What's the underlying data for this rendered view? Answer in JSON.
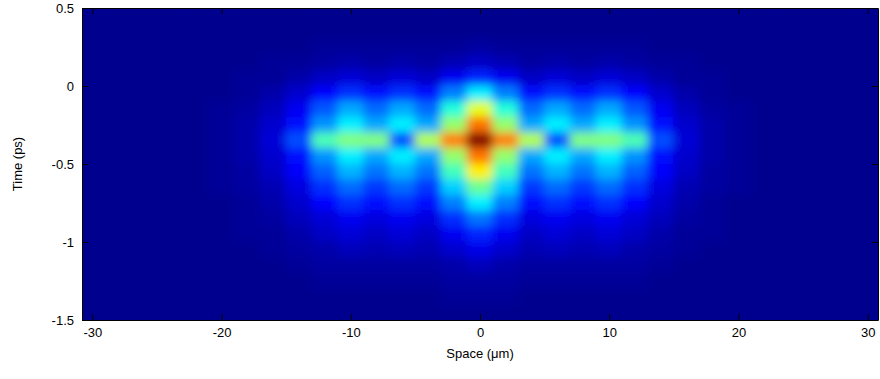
{
  "chart_data": {
    "type": "heatmap",
    "xlabel": "Space (μm)",
    "ylabel": "Time (ps)",
    "x": [
      -30,
      -28,
      -26,
      -24,
      -22,
      -20,
      -18,
      -16,
      -14,
      -12,
      -10,
      -8,
      -6,
      -4,
      -2,
      0,
      2,
      4,
      6,
      8,
      10,
      12,
      14,
      16,
      18,
      20,
      22,
      24,
      26,
      28,
      30
    ],
    "y": [
      0.45,
      0.35,
      0.25,
      0.15,
      0.05,
      -0.05,
      -0.15,
      -0.25,
      -0.35,
      -0.45,
      -0.55,
      -0.65,
      -0.75,
      -0.85,
      -0.95,
      -1.05,
      -1.15,
      -1.25,
      -1.35,
      -1.45
    ],
    "values": [
      [
        0,
        0,
        0,
        0,
        0,
        0,
        0,
        0,
        0,
        0,
        0,
        0,
        0,
        0,
        0,
        0,
        0,
        0,
        0,
        0,
        0,
        0,
        0,
        0,
        0,
        0,
        0,
        0,
        0,
        0,
        0
      ],
      [
        0,
        0,
        0,
        0,
        0,
        0,
        0,
        0,
        0,
        0,
        0,
        0,
        0,
        0,
        0,
        0,
        0,
        0,
        0,
        0,
        0,
        0,
        0,
        0,
        0,
        0,
        0,
        0,
        0,
        0,
        0
      ],
      [
        0,
        0,
        0,
        0,
        0,
        0,
        0,
        0,
        0,
        0.01,
        0.01,
        0.01,
        0.01,
        0.01,
        0.01,
        0.02,
        0.01,
        0.01,
        0.01,
        0.01,
        0.01,
        0.01,
        0,
        0,
        0,
        0,
        0,
        0,
        0,
        0,
        0
      ],
      [
        0,
        0,
        0,
        0,
        0,
        0,
        0,
        0.01,
        0.01,
        0.02,
        0.03,
        0.02,
        0.03,
        0.02,
        0.04,
        0.06,
        0.04,
        0.02,
        0.03,
        0.02,
        0.03,
        0.02,
        0.01,
        0.01,
        0,
        0,
        0,
        0,
        0,
        0,
        0
      ],
      [
        0,
        0,
        0,
        0,
        0,
        0,
        0.01,
        0.01,
        0.03,
        0.06,
        0.08,
        0.06,
        0.08,
        0.06,
        0.11,
        0.16,
        0.11,
        0.06,
        0.08,
        0.06,
        0.08,
        0.06,
        0.03,
        0.01,
        0.01,
        0,
        0,
        0,
        0,
        0,
        0
      ],
      [
        0,
        0,
        0,
        0,
        0,
        0,
        0.01,
        0.03,
        0.07,
        0.13,
        0.17,
        0.14,
        0.17,
        0.14,
        0.25,
        0.36,
        0.25,
        0.14,
        0.17,
        0.14,
        0.17,
        0.13,
        0.07,
        0.03,
        0.01,
        0,
        0,
        0,
        0,
        0,
        0
      ],
      [
        0,
        0,
        0,
        0,
        0,
        0.01,
        0.02,
        0.05,
        0.11,
        0.21,
        0.29,
        0.23,
        0.29,
        0.23,
        0.41,
        0.6,
        0.41,
        0.23,
        0.29,
        0.23,
        0.29,
        0.21,
        0.11,
        0.05,
        0.02,
        0.01,
        0,
        0,
        0,
        0,
        0
      ],
      [
        0,
        0,
        0,
        0,
        0,
        0.01,
        0.03,
        0.07,
        0.14,
        0.27,
        0.36,
        0.29,
        0.36,
        0.29,
        0.52,
        0.76,
        0.52,
        0.29,
        0.36,
        0.29,
        0.36,
        0.27,
        0.14,
        0.07,
        0.03,
        0.01,
        0,
        0,
        0,
        0,
        0
      ],
      [
        0,
        0,
        0,
        0,
        0,
        0.01,
        0.03,
        0.08,
        0.2,
        0.45,
        0.5,
        0.5,
        0.2,
        0.55,
        0.75,
        1,
        0.75,
        0.55,
        0.2,
        0.5,
        0.5,
        0.45,
        0.2,
        0.08,
        0.03,
        0.01,
        0,
        0,
        0,
        0,
        0
      ],
      [
        0,
        0,
        0,
        0,
        0,
        0.01,
        0.03,
        0.07,
        0.14,
        0.27,
        0.36,
        0.29,
        0.36,
        0.29,
        0.52,
        0.76,
        0.52,
        0.29,
        0.36,
        0.29,
        0.36,
        0.27,
        0.14,
        0.07,
        0.03,
        0.01,
        0,
        0,
        0,
        0,
        0
      ],
      [
        0,
        0,
        0,
        0,
        0,
        0.01,
        0.02,
        0.06,
        0.12,
        0.22,
        0.3,
        0.24,
        0.3,
        0.24,
        0.44,
        0.64,
        0.44,
        0.24,
        0.3,
        0.24,
        0.3,
        0.22,
        0.12,
        0.06,
        0.02,
        0.01,
        0,
        0,
        0,
        0,
        0
      ],
      [
        0,
        0,
        0,
        0,
        0,
        0.01,
        0.02,
        0.04,
        0.09,
        0.17,
        0.23,
        0.18,
        0.23,
        0.18,
        0.33,
        0.48,
        0.33,
        0.18,
        0.23,
        0.18,
        0.23,
        0.17,
        0.09,
        0.04,
        0.02,
        0.01,
        0,
        0,
        0,
        0,
        0
      ],
      [
        0,
        0,
        0,
        0,
        0,
        0,
        0.01,
        0.03,
        0.07,
        0.13,
        0.17,
        0.14,
        0.17,
        0.14,
        0.25,
        0.36,
        0.25,
        0.14,
        0.17,
        0.14,
        0.17,
        0.13,
        0.07,
        0.03,
        0.01,
        0,
        0,
        0,
        0,
        0,
        0
      ],
      [
        0,
        0,
        0,
        0,
        0,
        0,
        0.01,
        0.02,
        0.05,
        0.08,
        0.11,
        0.09,
        0.11,
        0.09,
        0.17,
        0.24,
        0.17,
        0.09,
        0.11,
        0.09,
        0.11,
        0.08,
        0.05,
        0.02,
        0.01,
        0,
        0,
        0,
        0,
        0,
        0
      ],
      [
        0,
        0,
        0,
        0,
        0,
        0,
        0.01,
        0.01,
        0.03,
        0.06,
        0.08,
        0.06,
        0.08,
        0.06,
        0.11,
        0.16,
        0.11,
        0.06,
        0.08,
        0.06,
        0.08,
        0.06,
        0.03,
        0.01,
        0.01,
        0,
        0,
        0,
        0,
        0,
        0
      ],
      [
        0,
        0,
        0,
        0,
        0,
        0,
        0,
        0.01,
        0.02,
        0.03,
        0.05,
        0.04,
        0.05,
        0.04,
        0.07,
        0.1,
        0.07,
        0.04,
        0.05,
        0.04,
        0.05,
        0.03,
        0.02,
        0.01,
        0,
        0,
        0,
        0,
        0,
        0,
        0
      ],
      [
        0,
        0,
        0,
        0,
        0,
        0,
        0,
        0,
        0.01,
        0.02,
        0.02,
        0.02,
        0.02,
        0.02,
        0.03,
        0.05,
        0.03,
        0.02,
        0.02,
        0.02,
        0.02,
        0.02,
        0.01,
        0,
        0,
        0,
        0,
        0,
        0,
        0,
        0
      ],
      [
        0,
        0,
        0,
        0,
        0,
        0,
        0,
        0,
        0,
        0.01,
        0.01,
        0.01,
        0.01,
        0.01,
        0.02,
        0.02,
        0.02,
        0.01,
        0.01,
        0.01,
        0.01,
        0.01,
        0,
        0,
        0,
        0,
        0,
        0,
        0,
        0,
        0
      ],
      [
        0,
        0,
        0,
        0,
        0,
        0,
        0,
        0,
        0,
        0,
        0,
        0,
        0,
        0,
        0.01,
        0.01,
        0.01,
        0,
        0,
        0,
        0,
        0,
        0,
        0,
        0,
        0,
        0,
        0,
        0,
        0,
        0
      ],
      [
        0,
        0,
        0,
        0,
        0,
        0,
        0,
        0,
        0,
        0,
        0,
        0,
        0,
        0,
        0,
        0,
        0,
        0,
        0,
        0,
        0,
        0,
        0,
        0,
        0,
        0,
        0,
        0,
        0,
        0,
        0
      ]
    ],
    "zlim": [
      0,
      1
    ],
    "xlim": [
      -30.8,
      30.8
    ],
    "ylim": [
      -1.5,
      0.5
    ],
    "xticks": [
      -30,
      -20,
      -10,
      0,
      10,
      20,
      30
    ],
    "yticks": [
      -1.5,
      -1,
      -0.5,
      0,
      0.5
    ]
  }
}
